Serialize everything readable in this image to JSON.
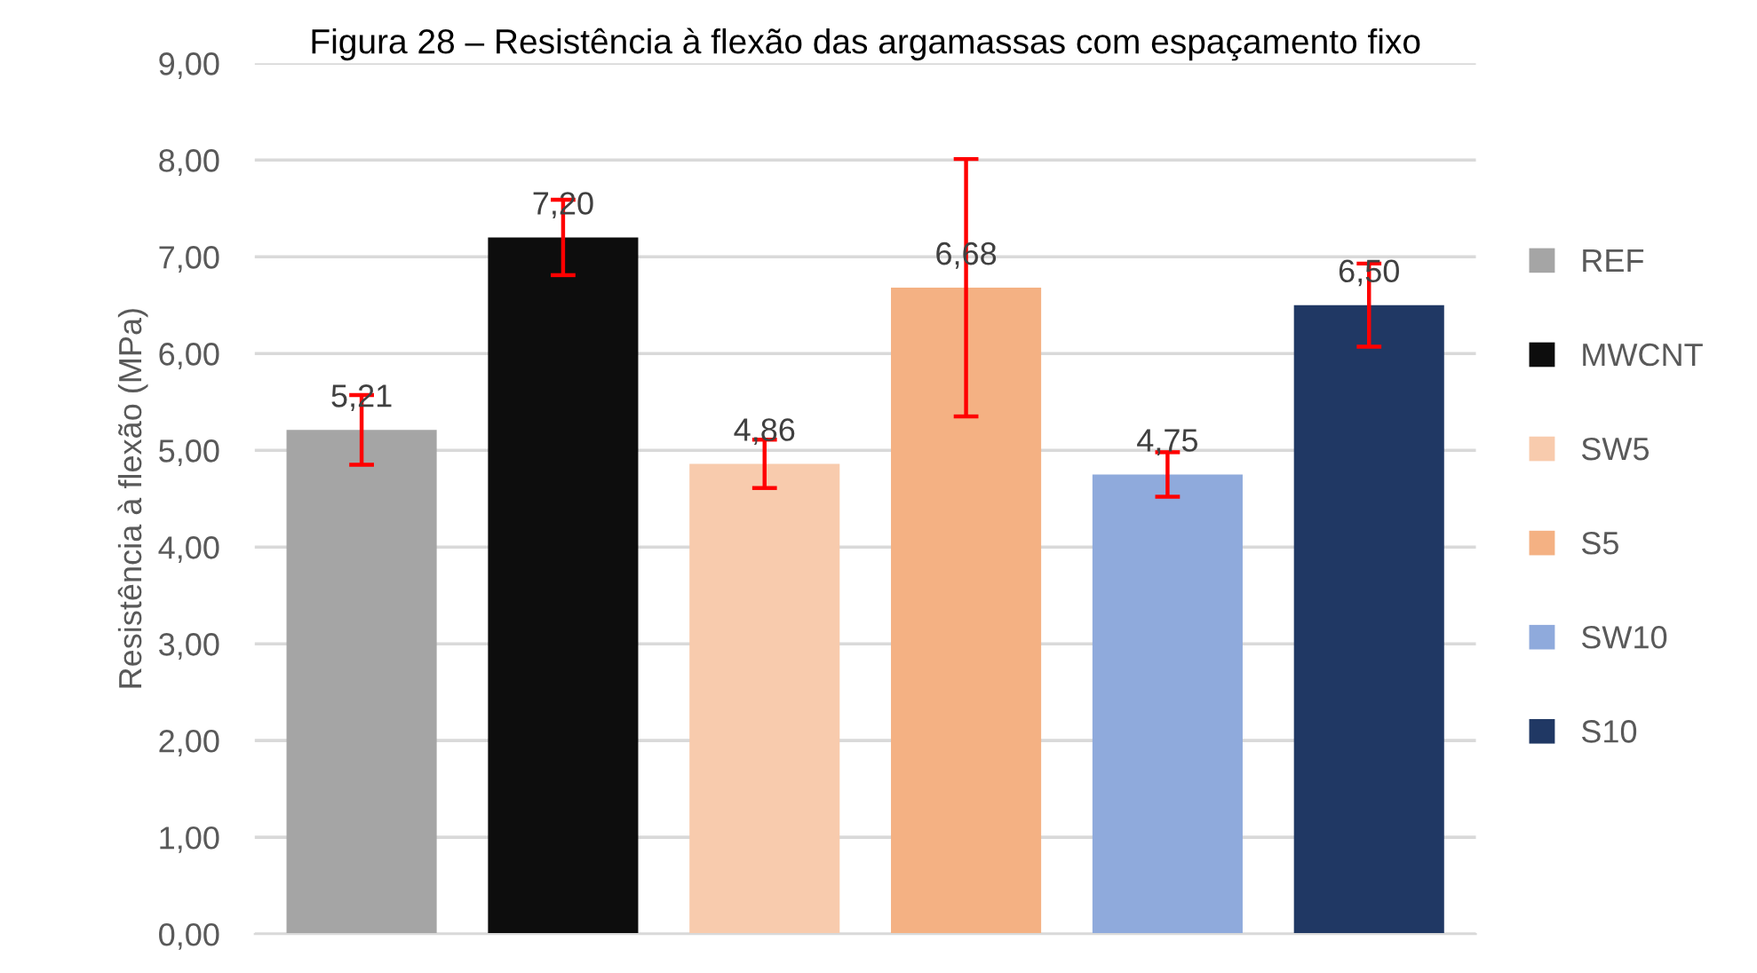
{
  "chart_data": {
    "type": "bar",
    "title": "Figura 28 – Resistência à flexão das argamassas com espaçamento fixo",
    "ylabel": "Resistência à flexão (MPa)",
    "categories": [
      null
    ],
    "series": [
      {
        "name": "REF",
        "color": "#a5a5a5",
        "values": [
          5.21
        ],
        "value_labels": [
          "5,21"
        ],
        "errors": [
          0.36
        ]
      },
      {
        "name": "MWCNT",
        "color": "#0d0d0d",
        "values": [
          7.2
        ],
        "value_labels": [
          "7,20"
        ],
        "errors": [
          0.39
        ]
      },
      {
        "name": "SW5",
        "color": "#f8cbad",
        "values": [
          4.86
        ],
        "value_labels": [
          "4,86"
        ],
        "errors": [
          0.25
        ]
      },
      {
        "name": "S5",
        "color": "#f4b183",
        "values": [
          6.68
        ],
        "value_labels": [
          "6,68"
        ],
        "errors": [
          1.33
        ]
      },
      {
        "name": "SW10",
        "color": "#8faadc",
        "values": [
          4.75
        ],
        "value_labels": [
          "4,75"
        ],
        "errors": [
          0.23
        ]
      },
      {
        "name": "S10",
        "color": "#203864",
        "values": [
          6.5
        ],
        "value_labels": [
          "6,50"
        ],
        "errors": [
          0.43
        ]
      }
    ],
    "ylim": [
      0,
      9
    ],
    "yticks": [
      {
        "value": 0,
        "label": "0,00"
      },
      {
        "value": 1,
        "label": "1,00"
      },
      {
        "value": 2,
        "label": "2,00"
      },
      {
        "value": 3,
        "label": "3,00"
      },
      {
        "value": 4,
        "label": "4,00"
      },
      {
        "value": 5,
        "label": "5,00"
      },
      {
        "value": 6,
        "label": "6,00"
      },
      {
        "value": 7,
        "label": "7,00"
      },
      {
        "value": 8,
        "label": "8,00"
      },
      {
        "value": 9,
        "label": "9,00"
      }
    ],
    "grid": "y",
    "legend": "right"
  }
}
